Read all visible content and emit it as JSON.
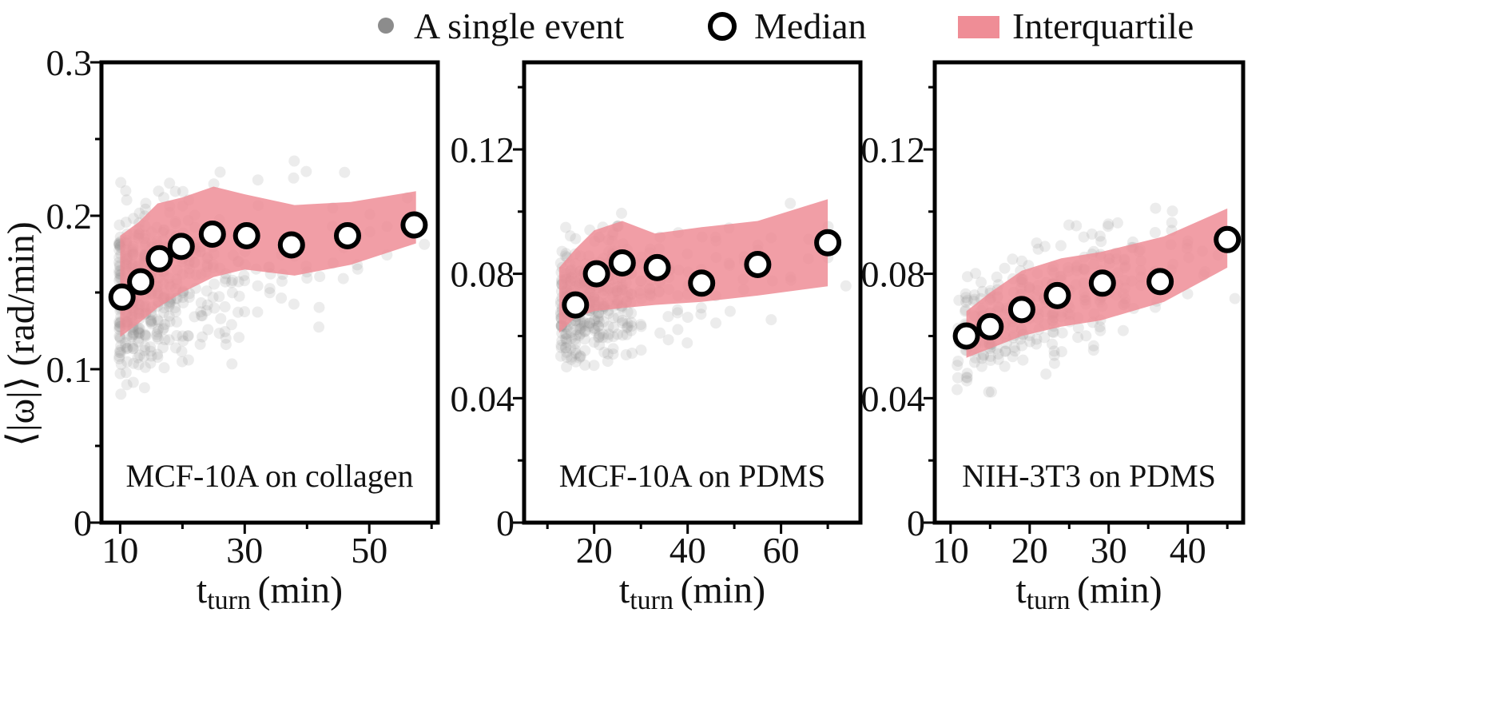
{
  "legend": {
    "single_event": "A single event",
    "median": "Median",
    "interquartile": "Interquartile"
  },
  "colors": {
    "event_gray": "#8c8c8c",
    "band": "#ef8d96",
    "median_fill": "#ffffff",
    "median_edge": "#000000",
    "axis": "#000000"
  },
  "chart_data": [
    {
      "type": "scatter",
      "panel_label": "MCF-10A on collagen",
      "xlabel": "t",
      "xlabel_sub": "turn",
      "xlabel_unit": "(min)",
      "ylabel": "⟨|ω|⟩ (rad/min)",
      "xlim": [
        7,
        61
      ],
      "ylim": [
        0,
        0.3
      ],
      "xticks": [
        10,
        30,
        50
      ],
      "xticklabels": [
        "10",
        "30",
        "50"
      ],
      "yticks": [
        0,
        0.1,
        0.2,
        0.3
      ],
      "yticklabels": [
        "0",
        "0.1",
        "0.2",
        "0.3"
      ],
      "median": {
        "x": [
          10.3,
          13.3,
          16.3,
          19.8,
          24.8,
          30.3,
          37.5,
          46.5,
          57.2
        ],
        "y": [
          0.147,
          0.157,
          0.172,
          0.18,
          0.188,
          0.187,
          0.181,
          0.187,
          0.194
        ]
      },
      "interquartile": {
        "x": [
          10,
          13,
          16,
          20,
          25,
          30,
          38,
          47,
          57.5
        ],
        "lower": [
          0.121,
          0.13,
          0.14,
          0.15,
          0.16,
          0.165,
          0.161,
          0.168,
          0.182
        ],
        "upper": [
          0.187,
          0.196,
          0.208,
          0.212,
          0.219,
          0.214,
          0.207,
          0.209,
          0.216
        ]
      },
      "events": {
        "columns": [
          10,
          11,
          12,
          13,
          14,
          15,
          16,
          17,
          18,
          19,
          20,
          21,
          22,
          23,
          24,
          25,
          26,
          27,
          28,
          29,
          30,
          32,
          34,
          36,
          38,
          40,
          42,
          44,
          46,
          48,
          50,
          53,
          56,
          59
        ],
        "counts": [
          60,
          52,
          46,
          42,
          38,
          32,
          28,
          24,
          20,
          18,
          16,
          14,
          12,
          10,
          9,
          8,
          8,
          7,
          6,
          6,
          6,
          5,
          5,
          4,
          4,
          4,
          3,
          3,
          3,
          3,
          2,
          2,
          2,
          1
        ],
        "center_start": 0.147,
        "center_end": 0.194,
        "spread": 0.06,
        "y_min": 0.06,
        "y_max": 0.295
      }
    },
    {
      "type": "scatter",
      "panel_label": "MCF-10A on PDMS",
      "xlabel": "t",
      "xlabel_sub": "turn",
      "xlabel_unit": "(min)",
      "ylabel": "",
      "xlim": [
        5,
        77
      ],
      "ylim": [
        0,
        0.148
      ],
      "xticks": [
        20,
        40,
        60
      ],
      "xticklabels": [
        "20",
        "40",
        "60"
      ],
      "yticks": [
        0,
        0.04,
        0.08,
        0.12
      ],
      "yticklabels": [
        "0",
        "0.04",
        "0.08",
        "0.12"
      ],
      "ymajor_step": 0.04,
      "median": {
        "x": [
          16,
          20.5,
          26,
          33.5,
          43,
          55,
          70
        ],
        "y": [
          0.07,
          0.08,
          0.0835,
          0.082,
          0.077,
          0.083,
          0.09
        ]
      },
      "interquartile": {
        "x": [
          12.5,
          16,
          20,
          26,
          33,
          43,
          55,
          70
        ],
        "lower": [
          0.061,
          0.066,
          0.068,
          0.069,
          0.07,
          0.071,
          0.073,
          0.076
        ],
        "upper": [
          0.082,
          0.088,
          0.094,
          0.097,
          0.093,
          0.095,
          0.097,
          0.104
        ]
      },
      "events": {
        "columns": [
          13,
          14,
          15,
          16,
          17,
          18,
          19,
          20,
          21,
          22,
          23,
          24,
          25,
          26,
          27,
          28,
          30,
          32,
          34,
          36,
          38,
          40,
          43,
          46,
          49,
          52,
          55,
          58,
          62,
          66,
          70,
          74
        ],
        "counts": [
          30,
          34,
          28,
          26,
          24,
          22,
          20,
          26,
          22,
          18,
          16,
          20,
          18,
          16,
          14,
          12,
          10,
          9,
          8,
          7,
          6,
          6,
          5,
          5,
          4,
          4,
          3,
          3,
          3,
          2,
          2,
          1
        ],
        "center_start": 0.07,
        "center_end": 0.09,
        "spread": 0.022,
        "y_min": 0.048,
        "y_max": 0.145
      }
    },
    {
      "type": "scatter",
      "panel_label": "NIH-3T3 on  PDMS",
      "xlabel": "t",
      "xlabel_sub": "turn",
      "xlabel_unit": "(min)",
      "ylabel": "",
      "xlim": [
        8,
        47
      ],
      "ylim": [
        0,
        0.148
      ],
      "xticks": [
        10,
        20,
        30,
        40
      ],
      "xticklabels": [
        "10",
        "20",
        "30",
        "40"
      ],
      "yticks": [
        0,
        0.04,
        0.08,
        0.12
      ],
      "yticklabels": [
        "0",
        "0.04",
        "0.08",
        "0.12"
      ],
      "ymajor_step": 0.04,
      "median": {
        "x": [
          12,
          15,
          19,
          23.5,
          29.2,
          36.5,
          45
        ],
        "y": [
          0.06,
          0.063,
          0.0685,
          0.073,
          0.077,
          0.0775,
          0.091
        ]
      },
      "interquartile": {
        "x": [
          12,
          15,
          19,
          24,
          29,
          37,
          45
        ],
        "lower": [
          0.053,
          0.056,
          0.06,
          0.063,
          0.065,
          0.071,
          0.082
        ],
        "upper": [
          0.068,
          0.074,
          0.081,
          0.085,
          0.087,
          0.092,
          0.101
        ]
      },
      "events": {
        "columns": [
          11,
          12,
          13,
          14,
          15,
          16,
          17,
          18,
          19,
          20,
          21,
          22,
          23,
          24,
          25,
          26,
          27,
          28,
          29,
          30,
          31,
          32,
          33,
          34,
          36,
          38,
          40,
          42,
          44,
          46
        ],
        "counts": [
          10,
          18,
          14,
          16,
          26,
          14,
          12,
          18,
          22,
          14,
          12,
          10,
          24,
          14,
          10,
          8,
          12,
          8,
          18,
          8,
          6,
          12,
          5,
          6,
          8,
          6,
          5,
          3,
          3,
          2
        ],
        "center_start": 0.06,
        "center_end": 0.091,
        "spread": 0.022,
        "y_min": 0.042,
        "y_max": 0.142
      }
    }
  ]
}
